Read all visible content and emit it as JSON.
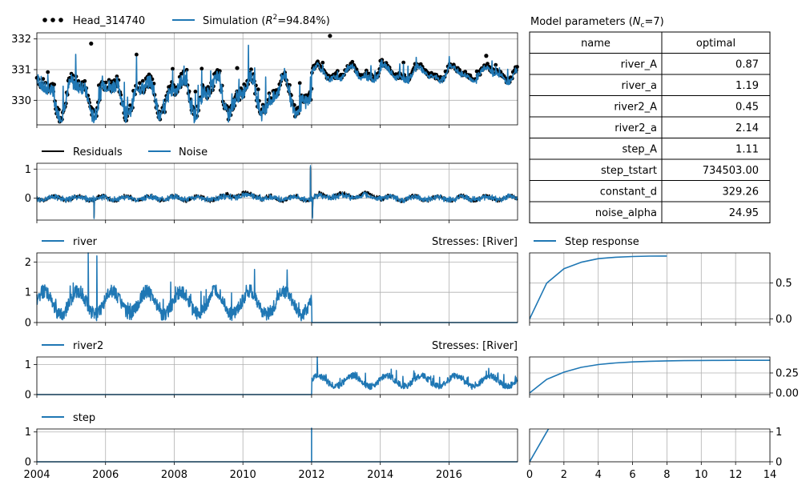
{
  "colors": {
    "blue": "#1f77b4",
    "black": "#000000",
    "grid": "#b0b0b0"
  },
  "chart_data": [
    {
      "id": "head",
      "type": "line",
      "legend": [
        {
          "name": "Head_314740",
          "style": "dots"
        },
        {
          "name": "Simulation (",
          "math": "R",
          "sup": "2",
          "suffix": "=94.84%)",
          "style": "line"
        }
      ],
      "xlim": [
        "2004-01-01",
        "2017-12-31"
      ],
      "ylim": [
        329.2,
        332.2
      ],
      "yticks": [
        330,
        331,
        332
      ],
      "observed": {
        "start": "2004-01-01",
        "end": "2017-12-31",
        "pre_level": 330.2,
        "post_level": 330.9,
        "step_date": "2012-01-01"
      },
      "simulation": {
        "start": "2004-01-01",
        "end": "2017-12-31",
        "pre_level": 330.1,
        "post_level": 330.85,
        "step_date": "2012-01-01"
      },
      "peaks": [
        {
          "x": "2005-08-01",
          "y": 331.85
        },
        {
          "x": "2012-07-15",
          "y": 332.1
        },
        {
          "x": "2009-11-01",
          "y": 331.05
        },
        {
          "x": "2017-02-01",
          "y": 331.45
        }
      ]
    },
    {
      "id": "residuals",
      "type": "line",
      "legend": [
        {
          "name": "Residuals",
          "style": "line-black"
        },
        {
          "name": "Noise",
          "style": "line"
        }
      ],
      "xlim": [
        "2004-01-01",
        "2017-12-31"
      ],
      "ylim": [
        -0.75,
        1.2
      ],
      "yticks": [
        0,
        1
      ],
      "spikes": [
        {
          "x": "2011-12-20",
          "y": 1.12
        },
        {
          "x": "2005-09-01",
          "y": -0.7
        },
        {
          "x": "2012-01-10",
          "y": -0.7
        }
      ]
    },
    {
      "id": "river",
      "type": "line",
      "legend": [
        {
          "name": "river",
          "style": "line"
        }
      ],
      "right_label": "Stresses: [River]",
      "xlim": [
        "2004-01-01",
        "2017-12-31"
      ],
      "ylim": [
        0,
        2.3
      ],
      "yticks": [
        0,
        1,
        2
      ],
      "active": {
        "start": "2004-01-01",
        "end": "2012-01-01",
        "mean": 0.65
      },
      "peaks": [
        {
          "x": "2005-07-01",
          "y": 2.3
        },
        {
          "x": "2005-10-01",
          "y": 2.2
        }
      ]
    },
    {
      "id": "river2",
      "type": "line",
      "legend": [
        {
          "name": "river2",
          "style": "line"
        }
      ],
      "right_label": "Stresses: [River]",
      "xlim": [
        "2004-01-01",
        "2017-12-31"
      ],
      "ylim": [
        0,
        1.25
      ],
      "yticks": [
        0,
        1
      ],
      "active": {
        "start": "2012-01-01",
        "end": "2017-12-31",
        "mean": 0.45
      },
      "peaks": [
        {
          "x": "2012-03-01",
          "y": 1.25
        }
      ]
    },
    {
      "id": "step",
      "type": "line",
      "legend": [
        {
          "name": "step",
          "style": "line"
        }
      ],
      "xlim": [
        "2004-01-01",
        "2017-12-31"
      ],
      "ylim": [
        0,
        1.1
      ],
      "yticks": [
        0,
        1
      ],
      "step_date": "2012-01-01",
      "xticks": [
        "2004",
        "2006",
        "2008",
        "2010",
        "2012",
        "2014",
        "2016"
      ]
    },
    {
      "id": "step_response",
      "type": "line",
      "legend": [
        {
          "name": "Step response",
          "style": "line"
        }
      ],
      "xlim": [
        0,
        14
      ],
      "ylim": [
        -0.05,
        0.92
      ],
      "yticks": [
        0.0,
        0.5
      ],
      "ytick_labels": [
        "0.0",
        "0.5"
      ],
      "x": [
        0,
        1,
        2,
        3,
        4,
        5,
        6,
        7,
        8
      ],
      "y": [
        0.0,
        0.5,
        0.7,
        0.79,
        0.84,
        0.86,
        0.87,
        0.875,
        0.877
      ]
    },
    {
      "id": "river2_response",
      "type": "line",
      "xlim": [
        0,
        14
      ],
      "ylim": [
        -0.02,
        0.45
      ],
      "yticks": [
        0.0,
        0.25
      ],
      "ytick_labels": [
        "0.00",
        "0.25"
      ],
      "x": [
        0,
        1,
        2,
        3,
        4,
        5,
        6,
        7,
        8,
        9,
        10,
        11,
        12,
        13,
        14
      ],
      "y": [
        0.0,
        0.17,
        0.26,
        0.32,
        0.355,
        0.375,
        0.388,
        0.396,
        0.401,
        0.404,
        0.406,
        0.407,
        0.408,
        0.408,
        0.408
      ]
    },
    {
      "id": "step_block_response",
      "type": "line",
      "xlim": [
        0,
        14
      ],
      "ylim": [
        0,
        1.1
      ],
      "yticks": [
        0,
        1
      ],
      "ytick_labels": [
        "0",
        "1"
      ],
      "x": [
        0,
        1,
        1.2
      ],
      "y": [
        0,
        1,
        1.2
      ],
      "xticks": [
        0,
        2,
        4,
        6,
        8,
        10,
        12,
        14
      ]
    }
  ],
  "parameters": {
    "title_prefix": "Model parameters (",
    "title_math": "N",
    "title_sub": "c",
    "title_suffix": "=7)",
    "headers": [
      "name",
      "optimal"
    ],
    "rows": [
      {
        "name": "river_A",
        "value": "0.87"
      },
      {
        "name": "river_a",
        "value": "1.19"
      },
      {
        "name": "river2_A",
        "value": "0.45"
      },
      {
        "name": "river2_a",
        "value": "2.14"
      },
      {
        "name": "step_A",
        "value": "1.11"
      },
      {
        "name": "step_tstart",
        "value": "734503.00"
      },
      {
        "name": "constant_d",
        "value": "329.26"
      },
      {
        "name": "noise_alpha",
        "value": "24.95"
      }
    ]
  }
}
